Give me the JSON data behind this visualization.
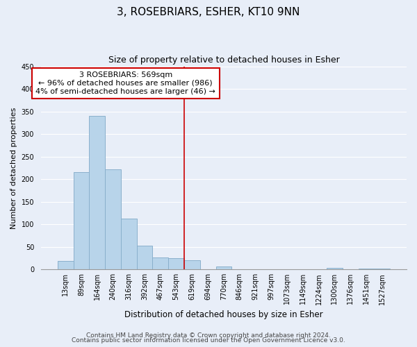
{
  "title": "3, ROSEBRIARS, ESHER, KT10 9NN",
  "subtitle": "Size of property relative to detached houses in Esher",
  "xlabel": "Distribution of detached houses by size in Esher",
  "ylabel": "Number of detached properties",
  "bar_labels": [
    "13sqm",
    "89sqm",
    "164sqm",
    "240sqm",
    "316sqm",
    "392sqm",
    "467sqm",
    "543sqm",
    "619sqm",
    "694sqm",
    "770sqm",
    "846sqm",
    "921sqm",
    "997sqm",
    "1073sqm",
    "1149sqm",
    "1224sqm",
    "1300sqm",
    "1376sqm",
    "1451sqm",
    "1527sqm"
  ],
  "bar_heights": [
    18,
    215,
    340,
    222,
    113,
    53,
    26,
    25,
    21,
    0,
    7,
    0,
    0,
    0,
    0,
    0,
    0,
    3,
    0,
    2,
    2
  ],
  "bar_color": "#b8d4ea",
  "bar_edge_color": "#8ab0cc",
  "vline_x": 7.5,
  "vline_color": "#cc0000",
  "ylim": [
    0,
    450
  ],
  "yticks": [
    0,
    50,
    100,
    150,
    200,
    250,
    300,
    350,
    400,
    450
  ],
  "annotation_title": "3 ROSEBRIARS: 569sqm",
  "annotation_line1": "← 96% of detached houses are smaller (986)",
  "annotation_line2": "4% of semi-detached houses are larger (46) →",
  "annotation_box_color": "#ffffff",
  "annotation_box_edge": "#cc0000",
  "footer1": "Contains HM Land Registry data © Crown copyright and database right 2024.",
  "footer2": "Contains public sector information licensed under the Open Government Licence v3.0.",
  "bg_color": "#e8eef8",
  "grid_color": "#ffffff",
  "title_fontsize": 11,
  "subtitle_fontsize": 9,
  "ylabel_fontsize": 8,
  "xlabel_fontsize": 8.5,
  "tick_fontsize": 7,
  "annotation_fontsize": 8,
  "footer_fontsize": 6.5
}
